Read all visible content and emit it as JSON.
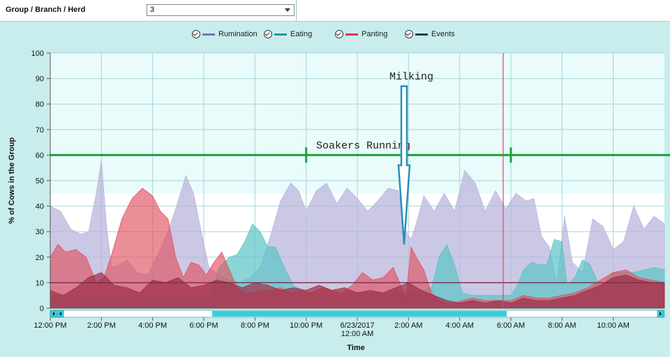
{
  "toolbar": {
    "group_label": "Group / Branch / Herd",
    "group_value": "3"
  },
  "legend": [
    {
      "label": "Rumination",
      "color": "#7b6fb3"
    },
    {
      "label": "Eating",
      "color": "#1c9a98"
    },
    {
      "label": "Panting",
      "color": "#d23c4c"
    },
    {
      "label": "Events",
      "color": "#1f3f46"
    }
  ],
  "annotations": {
    "milking": "Milking",
    "soakers": "Soakers Running"
  },
  "chart_data": {
    "type": "area",
    "title": "",
    "xlabel": "Time",
    "ylabel": "% of Cows in the Group",
    "ylim": [
      0,
      100
    ],
    "yticks": [
      0,
      10,
      20,
      30,
      40,
      50,
      60,
      70,
      80,
      90,
      100
    ],
    "xlim": [
      0,
      24
    ],
    "xticks": [
      {
        "h": 0,
        "label": "12:00 PM"
      },
      {
        "h": 2,
        "label": "2:00 PM"
      },
      {
        "h": 4,
        "label": "4:00 PM"
      },
      {
        "h": 6,
        "label": "6:00 PM"
      },
      {
        "h": 8,
        "label": "8:00 PM"
      },
      {
        "h": 10,
        "label": "10:00 PM"
      },
      {
        "h": 12,
        "label": "6/23/2017",
        "label2": "12:00 AM"
      },
      {
        "h": 14,
        "label": "2:00 AM"
      },
      {
        "h": 16,
        "label": "4:00 AM"
      },
      {
        "h": 18,
        "label": "6:00 AM"
      },
      {
        "h": 20,
        "label": "8:00 AM"
      },
      {
        "h": 22,
        "label": "10:00 AM"
      }
    ],
    "grid": true,
    "legend_position": "top",
    "series": [
      {
        "name": "Rumination",
        "color": "#b9b5dc",
        "x": [
          0,
          0.4,
          0.8,
          1.2,
          1.5,
          1.8,
          2.0,
          2.2,
          2.4,
          2.7,
          3.0,
          3.4,
          3.8,
          4.2,
          4.6,
          5.0,
          5.3,
          5.6,
          5.9,
          6.2,
          6.6,
          7.0,
          7.4,
          7.8,
          8.2,
          8.6,
          9.0,
          9.4,
          9.7,
          10.0,
          10.4,
          10.8,
          11.2,
          11.6,
          12.0,
          12.4,
          12.8,
          13.2,
          13.6,
          13.9,
          14.1,
          14.3,
          14.6,
          15.0,
          15.4,
          15.8,
          16.2,
          16.6,
          17.0,
          17.4,
          17.8,
          18.2,
          18.6,
          18.9,
          19.2,
          19.5,
          19.8,
          20.1,
          20.4,
          20.8,
          21.2,
          21.6,
          22.0,
          22.4,
          22.8,
          23.2,
          23.6,
          24
        ],
        "values": [
          40,
          38,
          31,
          29,
          30,
          45,
          58,
          32,
          16,
          17,
          19,
          14,
          13,
          21,
          30,
          42,
          52,
          45,
          30,
          16,
          13,
          11,
          10,
          12,
          16,
          28,
          42,
          49,
          46,
          38,
          46,
          49,
          41,
          47,
          43,
          38,
          42,
          47,
          46,
          30,
          27,
          33,
          44,
          38,
          45,
          38,
          54,
          49,
          38,
          46,
          39,
          45,
          42,
          43,
          28,
          24,
          10,
          36,
          18,
          14,
          35,
          32,
          23,
          26,
          40,
          31,
          36,
          33
        ]
      },
      {
        "name": "Eating",
        "color": "#59c4c6",
        "x": [
          0,
          2,
          4,
          6,
          6.3,
          6.6,
          7.0,
          7.3,
          7.6,
          7.9,
          8.2,
          8.5,
          8.8,
          9.1,
          9.5,
          10,
          11,
          12,
          13,
          13.8,
          14.1,
          14.5,
          14.9,
          15.2,
          15.5,
          15.8,
          16.1,
          16.5,
          17,
          17.5,
          18,
          18.2,
          18.5,
          18.8,
          19.1,
          19.4,
          19.7,
          20.0,
          20.2,
          20.5,
          20.8,
          21.1,
          21.4,
          21.7,
          22.0,
          22.4,
          22.8,
          23.2,
          23.6,
          24
        ],
        "values": [
          5,
          5,
          5,
          5,
          6,
          16,
          20,
          21,
          26,
          33,
          30,
          24,
          24,
          17,
          9,
          6,
          5,
          6,
          6,
          6,
          7,
          7,
          8,
          20,
          25,
          17,
          6,
          5,
          5,
          5,
          5,
          8,
          15,
          18,
          17,
          17,
          27,
          26,
          9,
          12,
          19,
          17,
          10,
          10,
          14,
          14,
          14,
          15,
          16,
          15
        ]
      },
      {
        "name": "Panting",
        "color": "#e0525f",
        "x": [
          0,
          0.3,
          0.6,
          1.0,
          1.4,
          1.8,
          2.1,
          2.4,
          2.8,
          3.2,
          3.6,
          4.0,
          4.3,
          4.6,
          4.9,
          5.2,
          5.5,
          5.8,
          6.1,
          6.4,
          6.7,
          7.0,
          7.3,
          7.6,
          7.9,
          8.2,
          8.6,
          9.0,
          9.4,
          9.8,
          10.2,
          10.6,
          11,
          11.4,
          11.8,
          12.2,
          12.6,
          13.0,
          13.4,
          13.7,
          13.9,
          14.1,
          14.3,
          14.6,
          14.9,
          15.2,
          15.5,
          15.8,
          16.1,
          16.5,
          17.0,
          17.5,
          18.0,
          18.5,
          19.0,
          19.5,
          20.0,
          20.5,
          21.0,
          21.5,
          22.0,
          22.5,
          23.0,
          23.5,
          24
        ],
        "values": [
          20,
          25,
          22,
          23,
          20,
          10,
          12,
          21,
          35,
          43,
          47,
          44,
          38,
          35,
          20,
          12,
          18,
          17,
          13,
          18,
          22,
          15,
          8,
          6,
          6,
          7,
          7,
          8,
          6,
          7,
          6,
          8,
          7,
          6,
          9,
          14,
          11,
          12,
          16,
          9,
          4,
          24,
          20,
          15,
          6,
          3,
          2,
          2,
          3,
          4,
          3,
          3,
          3,
          5,
          4,
          4,
          5,
          6,
          8,
          11,
          14,
          15,
          12,
          11,
          10
        ]
      },
      {
        "name": "Events",
        "color": "#9e2e48",
        "x": [
          0,
          0.5,
          1.0,
          1.5,
          2.0,
          2.5,
          3.0,
          3.5,
          4.0,
          4.5,
          5.0,
          5.5,
          6.0,
          6.5,
          7.0,
          7.5,
          8.0,
          8.5,
          9,
          9.5,
          10,
          10.5,
          11,
          11.5,
          12,
          12.5,
          13,
          13.5,
          14,
          14.5,
          15,
          15.5,
          16,
          16.5,
          17,
          17.5,
          18,
          18.5,
          19,
          19.5,
          20,
          20.5,
          21,
          21.5,
          22,
          22.5,
          23,
          23.5,
          24
        ],
        "values": [
          7,
          5,
          8,
          12,
          14,
          9,
          8,
          6,
          11,
          10,
          12,
          8,
          9,
          11,
          10,
          8,
          10,
          9,
          7,
          8,
          7,
          9,
          7,
          8,
          6,
          7,
          6,
          8,
          10,
          7,
          5,
          3,
          2,
          3,
          2,
          3,
          2,
          4,
          3,
          3,
          4,
          5,
          7,
          9,
          12,
          13,
          11,
          10,
          10
        ]
      }
    ],
    "reference_lines": [
      {
        "type": "horizontal",
        "y": 10,
        "color": "#7a2a4a"
      },
      {
        "type": "vertical",
        "x": 17.7,
        "color": "#d94a5a"
      }
    ],
    "soakers_range": {
      "y": 60,
      "x_start": 10,
      "x_end": 18
    }
  }
}
